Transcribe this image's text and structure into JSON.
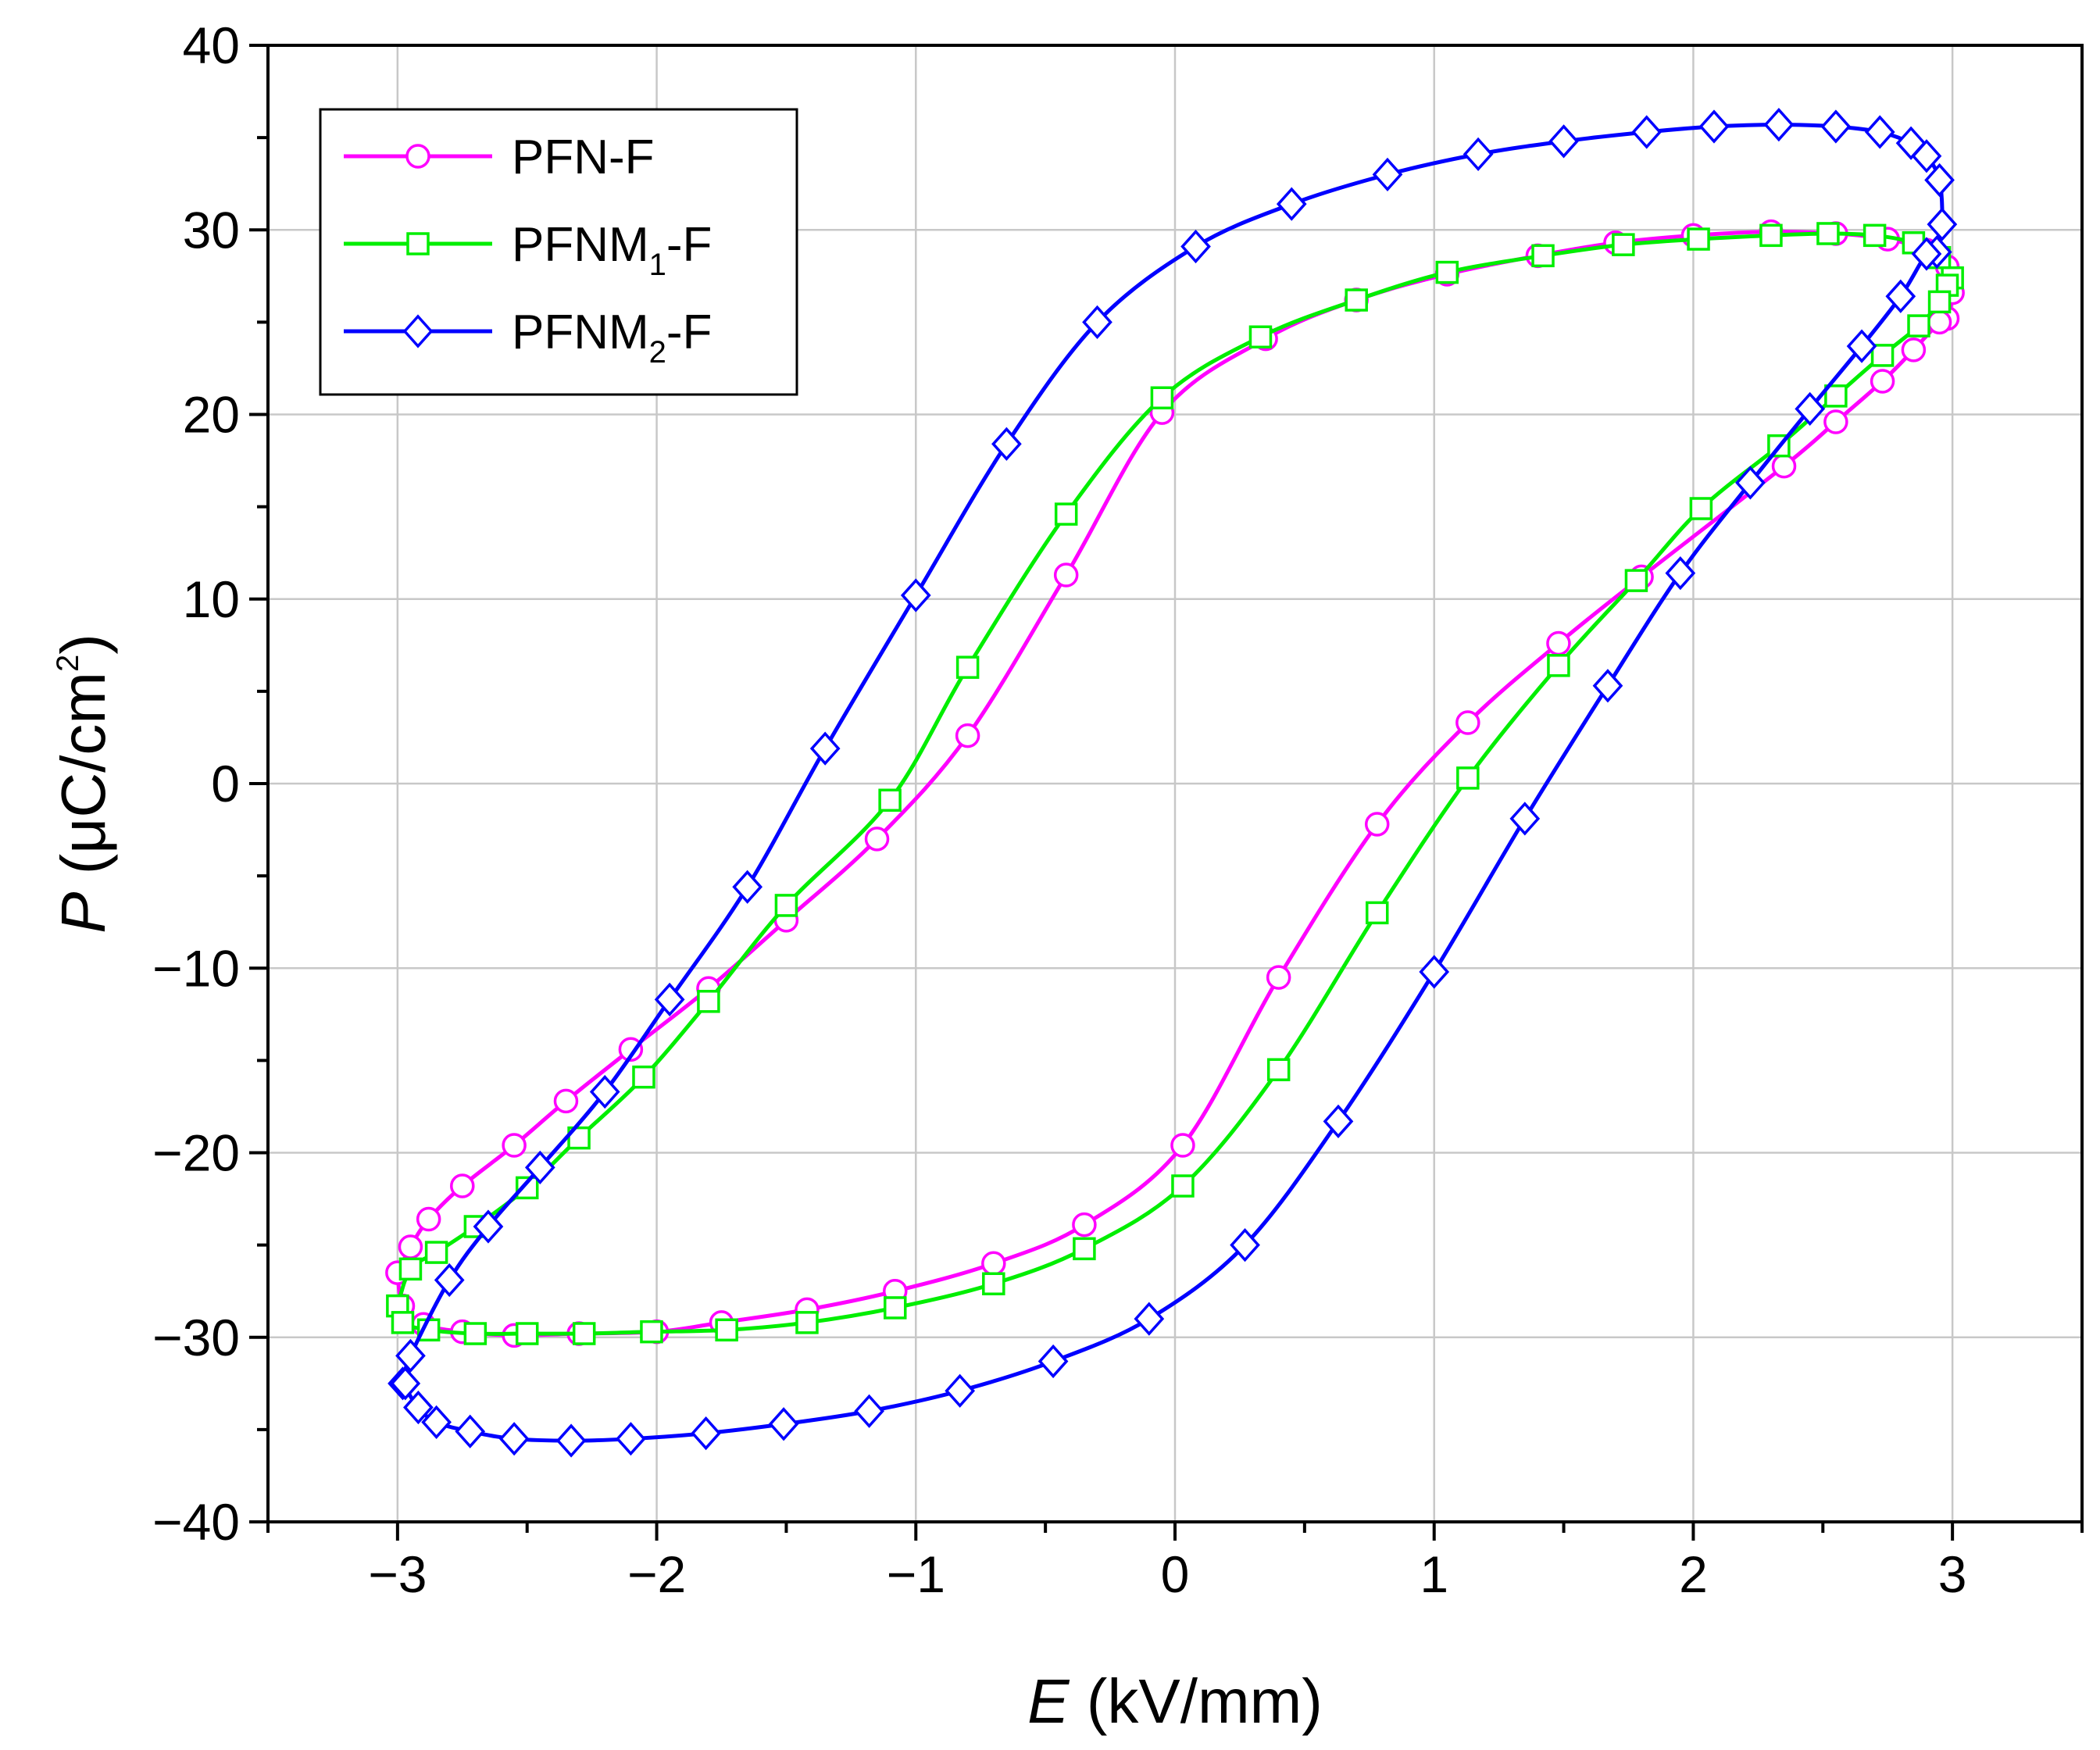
{
  "chart_data": {
    "type": "line",
    "title": "",
    "xlabel": {
      "symbol": "E",
      "unit": " (kV/mm)"
    },
    "ylabel": {
      "symbol": "P",
      "unit": " (μC/cm",
      "sup": "2",
      "close": ")"
    },
    "xlim": [
      -3.5,
      3.5
    ],
    "ylim": [
      -40,
      40
    ],
    "x_ticks": [
      -3,
      -2,
      -1,
      0,
      1,
      2,
      3
    ],
    "x_tick_labels": [
      "−3",
      "−2",
      "−1",
      "0",
      "1",
      "2",
      "3"
    ],
    "y_ticks": [
      -40,
      -30,
      -20,
      -10,
      0,
      10,
      20,
      30,
      40
    ],
    "y_tick_labels": [
      "−40",
      "−30",
      "−20",
      "−10",
      "0",
      "10",
      "20",
      "30",
      "40"
    ],
    "grid": true,
    "legend_position": "top-left",
    "series": [
      {
        "name": "PFN-F",
        "label_parts": [
          "PFN-F"
        ],
        "color": "#ff00ff",
        "marker": "circle",
        "x": [
          -3.0,
          -2.95,
          -2.88,
          -2.75,
          -2.55,
          -2.35,
          -2.1,
          -1.8,
          -1.5,
          -1.15,
          -0.8,
          -0.42,
          -0.05,
          0.35,
          0.7,
          1.05,
          1.4,
          1.7,
          2.0,
          2.3,
          2.55,
          2.75,
          2.9,
          2.98,
          3.0,
          2.98,
          2.95,
          2.85,
          2.73,
          2.55,
          2.35,
          1.8,
          1.48,
          1.13,
          0.78,
          0.4,
          0.03,
          -0.35,
          -0.7,
          -1.08,
          -1.42,
          -1.75,
          -2.0,
          -2.3,
          -2.55,
          -2.75,
          -2.9,
          -2.98,
          -3.0
        ],
        "y": [
          -26.5,
          -25.1,
          -23.6,
          -21.8,
          -19.6,
          -17.2,
          -14.4,
          -11.1,
          -7.4,
          -3.0,
          2.6,
          11.3,
          20.1,
          24.1,
          26.2,
          27.6,
          28.6,
          29.3,
          29.7,
          29.9,
          29.8,
          29.5,
          28.9,
          28.0,
          26.6,
          25.2,
          25.0,
          23.5,
          21.8,
          19.6,
          17.2,
          11.2,
          7.6,
          3.3,
          -2.2,
          -10.5,
          -19.6,
          -23.9,
          -26.0,
          -27.5,
          -28.5,
          -29.2,
          -29.7,
          -29.8,
          -29.9,
          -29.7,
          -29.3,
          -28.3,
          -26.5
        ],
        "marker_every": [
          0,
          1,
          2,
          3,
          4,
          5,
          6,
          7,
          8,
          9,
          10,
          11,
          12,
          13,
          14,
          15,
          16,
          17,
          18,
          19,
          20,
          21,
          22,
          23,
          24,
          25,
          26,
          27,
          28,
          29,
          30,
          31,
          32,
          33,
          34,
          35,
          36,
          37,
          38,
          39,
          40,
          41,
          42,
          43,
          44,
          45,
          46,
          47
        ]
      },
      {
        "name": "PFNM1-F",
        "label_parts": [
          "PFNM",
          "1",
          "-F"
        ],
        "color": "#00ee00",
        "marker": "square",
        "x": [
          -3.0,
          -2.95,
          -2.85,
          -2.7,
          -2.5,
          -2.3,
          -2.05,
          -1.8,
          -1.5,
          -1.1,
          -0.8,
          -0.42,
          -0.05,
          0.33,
          0.7,
          1.05,
          1.42,
          1.73,
          2.02,
          2.3,
          2.52,
          2.7,
          2.85,
          2.95,
          3.0,
          2.98,
          2.95,
          2.87,
          2.73,
          2.55,
          2.33,
          2.03,
          1.78,
          1.48,
          1.13,
          0.78,
          0.4,
          0.03,
          -0.35,
          -0.7,
          -1.08,
          -1.42,
          -1.73,
          -2.02,
          -2.28,
          -2.5,
          -2.7,
          -2.88,
          -2.98,
          -3.0
        ],
        "y": [
          -28.3,
          -26.3,
          -25.4,
          -24.0,
          -21.9,
          -19.2,
          -15.9,
          -11.8,
          -6.6,
          -0.9,
          6.3,
          14.6,
          20.9,
          24.2,
          26.2,
          27.7,
          28.6,
          29.2,
          29.5,
          29.7,
          29.8,
          29.7,
          29.3,
          28.5,
          27.4,
          27.0,
          26.1,
          24.8,
          23.2,
          21.0,
          18.3,
          14.9,
          11.0,
          6.4,
          0.3,
          -7.0,
          -15.5,
          -21.8,
          -25.2,
          -27.1,
          -28.4,
          -29.2,
          -29.6,
          -29.7,
          -29.8,
          -29.8,
          -29.8,
          -29.6,
          -29.2,
          -28.3
        ],
        "marker_every": [
          0,
          1,
          2,
          3,
          4,
          5,
          6,
          7,
          8,
          9,
          10,
          11,
          12,
          13,
          14,
          15,
          16,
          17,
          18,
          19,
          20,
          21,
          22,
          23,
          24,
          25,
          26,
          27,
          28,
          29,
          30,
          31,
          32,
          33,
          34,
          35,
          36,
          37,
          38,
          39,
          40,
          41,
          42,
          43,
          44,
          45,
          46,
          47,
          48
        ]
      },
      {
        "name": "PFNM2-F",
        "label_parts": [
          "PFNM",
          "2",
          "-F"
        ],
        "color": "#0000ff",
        "marker": "diamond",
        "x": [
          -2.98,
          -2.95,
          -2.8,
          -2.65,
          -2.45,
          -2.2,
          -1.95,
          -1.65,
          -1.35,
          -1.0,
          -0.65,
          -0.3,
          0.08,
          0.45,
          0.82,
          1.17,
          1.5,
          1.82,
          2.08,
          2.33,
          2.55,
          2.72,
          2.84,
          2.9,
          2.95,
          2.96,
          2.94,
          2.9,
          2.8,
          2.65,
          2.45,
          2.22,
          1.95,
          1.67,
          1.35,
          1.0,
          0.63,
          0.27,
          -0.1,
          -0.47,
          -0.83,
          -1.18,
          -1.51,
          -1.81,
          -2.1,
          -2.33,
          -2.55,
          -2.72,
          -2.85,
          -2.92,
          -2.97,
          -2.95
        ],
        "y": [
          -32.5,
          -31.0,
          -26.9,
          -24.0,
          -20.8,
          -16.7,
          -11.7,
          -5.6,
          1.9,
          10.2,
          18.4,
          25.0,
          29.1,
          31.4,
          33.0,
          34.1,
          34.8,
          35.3,
          35.6,
          35.7,
          35.6,
          35.3,
          34.7,
          34.0,
          32.7,
          30.3,
          28.8,
          28.7,
          26.4,
          23.7,
          20.3,
          16.3,
          11.4,
          5.3,
          -1.9,
          -10.2,
          -18.3,
          -25.0,
          -29.0,
          -31.3,
          -32.9,
          -34.0,
          -34.7,
          -35.2,
          -35.5,
          -35.6,
          -35.5,
          -35.1,
          -34.6,
          -33.8,
          -32.5,
          -31.0
        ],
        "marker_every": [
          0,
          1,
          2,
          3,
          4,
          5,
          6,
          7,
          8,
          9,
          10,
          11,
          12,
          13,
          14,
          15,
          16,
          17,
          18,
          19,
          20,
          21,
          22,
          23,
          24,
          25,
          26,
          27,
          28,
          29,
          30,
          31,
          32,
          33,
          34,
          35,
          36,
          37,
          38,
          39,
          40,
          41,
          42,
          43,
          44,
          45,
          46,
          47,
          48,
          49,
          50
        ]
      }
    ]
  }
}
